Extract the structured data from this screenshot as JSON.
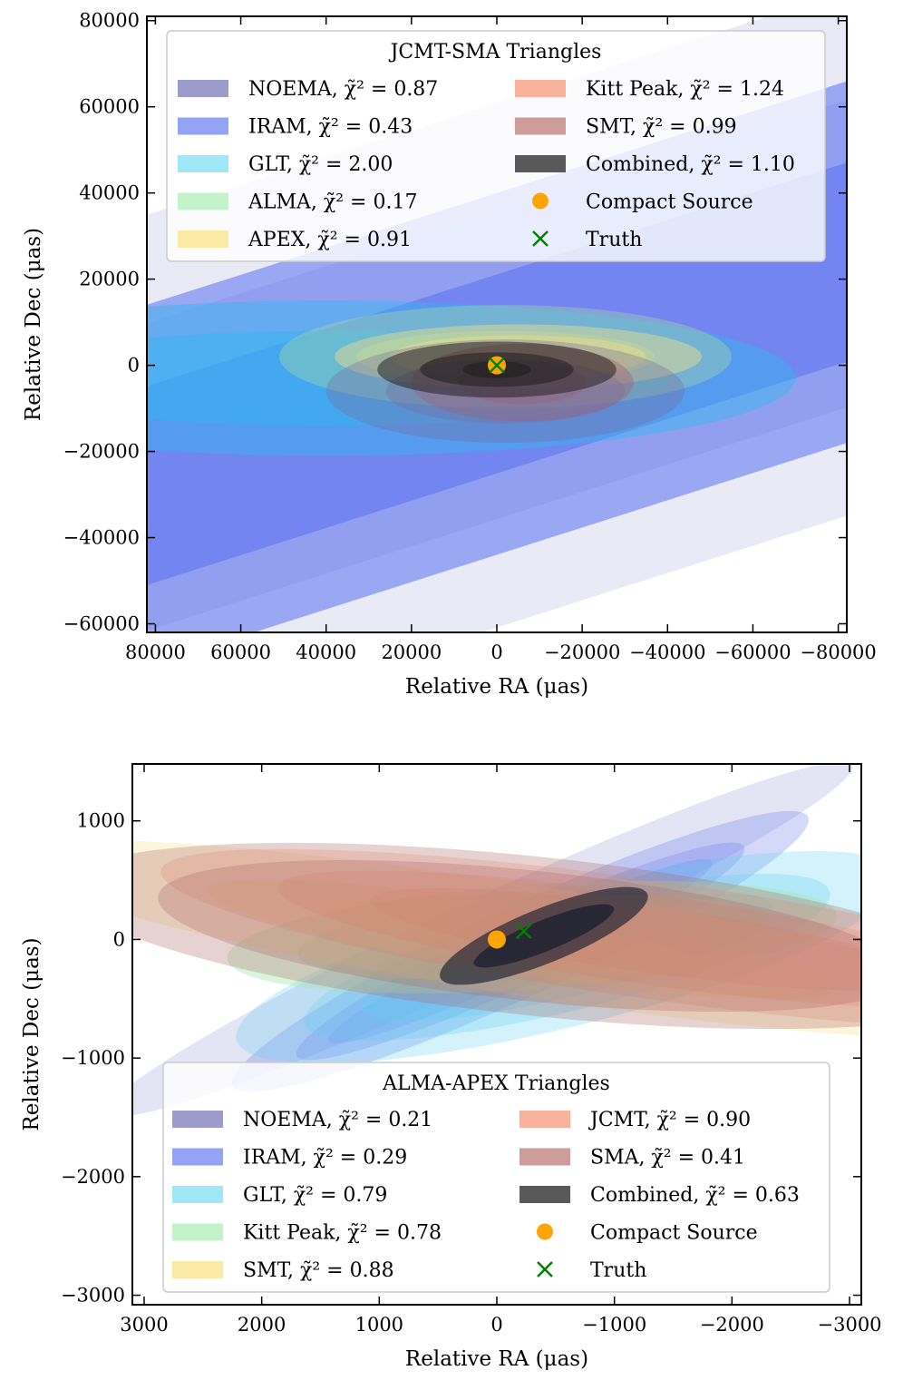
{
  "chart_data": [
    {
      "type": "scatter",
      "title": "JCMT-SMA Triangles",
      "xlabel": "Relative RA (μas)",
      "ylabel": "Relative Dec (μas)",
      "xlim": [
        82000,
        -82000
      ],
      "ylim": [
        -62000,
        81000
      ],
      "xticks": [
        80000,
        60000,
        40000,
        20000,
        0,
        -20000,
        -40000,
        -60000,
        -80000
      ],
      "xtick_labels": [
        "80000",
        "60000",
        "40000",
        "20000",
        "0",
        "−20000",
        "−40000",
        "−60000",
        "−80000"
      ],
      "yticks": [
        -60000,
        -40000,
        -20000,
        0,
        20000,
        40000,
        60000,
        80000
      ],
      "ytick_labels": [
        "−60000",
        "−40000",
        "−20000",
        "0",
        "20000",
        "40000",
        "60000",
        "80000"
      ],
      "legend_position": "top",
      "legend_columns": [
        [
          "NOEMA, χ̃² = 0.87",
          "IRAM, χ̃² = 0.43",
          "GLT, χ̃² = 2.00",
          "ALMA, χ̃² = 0.17",
          "APEX, χ̃² = 0.91"
        ],
        [
          "Kitt Peak, χ̃² = 1.24",
          "SMT, χ̃² = 0.99",
          "Combined, χ̃² = 1.10",
          "Compact Source",
          "Truth"
        ]
      ],
      "legend_kinds": [
        [
          "patch",
          "patch",
          "patch",
          "patch",
          "patch"
        ],
        [
          "patch",
          "patch",
          "patch",
          "dot",
          "cross"
        ]
      ],
      "legend_colors": [
        [
          "#9b9ccc",
          "#95a3f6",
          "#a0e8f8",
          "#c4f3cb",
          "#fbeaa3"
        ],
        [
          "#f9b39c",
          "#cf9c9c",
          "#595959",
          "#ffa500",
          "#008000"
        ]
      ],
      "regions": [
        {
          "name": "NOEMA",
          "shape": "band",
          "color": "#9a9ed6",
          "opacity": 0.22,
          "angle_deg": 17.7,
          "center": [
            0,
            0
          ],
          "levels": [
            [
              -58000,
              58000
            ],
            [
              -34000,
              34000
            ]
          ]
        },
        {
          "name": "IRAM",
          "shape": "band",
          "color": "#5a70f0",
          "opacity": 0.55,
          "angle_deg": 17.7,
          "center": [
            0,
            -2000
          ],
          "levels": [
            [
              -40000,
              40000
            ],
            [
              -22000,
              22000
            ]
          ]
        },
        {
          "name": "GLT",
          "shape": "ellipse",
          "color": "#30b8f0",
          "opacity": 0.45,
          "angle_deg": 0,
          "center": [
            40000,
            -3000
          ],
          "levels": [
            [
              110000,
              18000
            ],
            [
              80000,
              11000
            ]
          ]
        },
        {
          "name": "ALMA",
          "shape": "ellipse",
          "color": "#a3d6a3",
          "opacity": 0.4,
          "angle_deg": 0,
          "center": [
            -2000,
            2000
          ],
          "levels": [
            [
              53000,
              12000
            ],
            [
              35000,
              6000
            ]
          ]
        },
        {
          "name": "APEX",
          "shape": "ellipse",
          "color": "#f0de8a",
          "opacity": 0.45,
          "angle_deg": 0,
          "center": [
            -5000,
            2000
          ],
          "levels": [
            [
              43000,
              7500
            ],
            [
              30000,
              5000
            ]
          ]
        },
        {
          "name": "Kitt Peak",
          "shape": "ellipse",
          "color": "#c06060",
          "opacity": 0.45,
          "angle_deg": 0,
          "center": [
            -6000,
            -4000
          ],
          "levels": [
            [
              26000,
              9000
            ],
            [
              15000,
              5000
            ]
          ]
        },
        {
          "name": "SMT",
          "shape": "ellipse",
          "color": "#7a6b9a",
          "opacity": 0.35,
          "angle_deg": 0,
          "center": [
            -2000,
            -6000
          ],
          "levels": [
            [
              42000,
              12000
            ],
            [
              28000,
              7500
            ]
          ]
        },
        {
          "name": "Combined",
          "shape": "ellipse",
          "color": "#1a1a1a",
          "opacity": 0.5,
          "angle_deg": 0,
          "center": [
            0,
            -1000
          ],
          "levels": [
            [
              28000,
              6500
            ],
            [
              18000,
              4000
            ],
            [
              8000,
              2000
            ]
          ]
        }
      ],
      "points": [
        {
          "name": "Compact Source",
          "marker": "dot",
          "x": 0,
          "y": 0,
          "color": "#ffa500"
        },
        {
          "name": "Truth",
          "marker": "cross",
          "x": 0,
          "y": 0,
          "color": "#008000"
        }
      ]
    },
    {
      "type": "scatter",
      "title": "ALMA-APEX Triangles",
      "xlabel": "Relative RA (μas)",
      "ylabel": "Relative Dec (μas)",
      "xlim": [
        3100,
        -3100
      ],
      "ylim": [
        -3080,
        1480
      ],
      "xticks": [
        3000,
        2000,
        1000,
        0,
        -1000,
        -2000,
        -3000
      ],
      "xtick_labels": [
        "3000",
        "2000",
        "1000",
        "0",
        "−1000",
        "−2000",
        "−3000"
      ],
      "yticks": [
        -3000,
        -2000,
        -1000,
        0,
        1000
      ],
      "ytick_labels": [
        "−3000",
        "−2000",
        "−1000",
        "0",
        "1000"
      ],
      "legend_position": "bottom",
      "legend_columns": [
        [
          "NOEMA, χ̃² = 0.21",
          "IRAM, χ̃² = 0.29",
          "GLT, χ̃² = 0.79",
          "Kitt Peak, χ̃² = 0.78",
          "SMT, χ̃² = 0.88"
        ],
        [
          "JCMT, χ̃² = 0.90",
          "SMA, χ̃² = 0.41",
          "Combined, χ̃² = 0.63",
          "Compact Source",
          "Truth"
        ]
      ],
      "legend_kinds": [
        [
          "patch",
          "patch",
          "patch",
          "patch",
          "patch"
        ],
        [
          "patch",
          "patch",
          "patch",
          "dot",
          "cross"
        ]
      ],
      "legend_colors": [
        [
          "#9b9ccc",
          "#95a3f6",
          "#a0e8f8",
          "#c4f3cb",
          "#fbeaa3"
        ],
        [
          "#f9b39c",
          "#cf9c9c",
          "#595959",
          "#ffa500",
          "#008000"
        ]
      ],
      "regions": [
        {
          "name": "NOEMA",
          "shape": "ellipse",
          "color": "#9a9ed6",
          "opacity": 0.28,
          "angle_deg": 25,
          "center": [
            150,
            0
          ],
          "levels": [
            [
              3500,
              330
            ]
          ]
        },
        {
          "name": "IRAM",
          "shape": "ellipse",
          "color": "#6f80f0",
          "opacity": 0.3,
          "angle_deg": 25,
          "center": [
            -200,
            -100
          ],
          "levels": [
            [
              2700,
              380
            ],
            [
              2100,
              280
            ],
            [
              1800,
              200
            ]
          ]
        },
        {
          "name": "GLT",
          "shape": "ellipse",
          "color": "#60d0f0",
          "opacity": 0.28,
          "angle_deg": 14,
          "center": [
            -600,
            -150
          ],
          "levels": [
            [
              2900,
              580
            ],
            [
              2300,
              450
            ],
            [
              1800,
              330
            ]
          ]
        },
        {
          "name": "Kitt Peak",
          "shape": "ellipse",
          "color": "#a6e8b0",
          "opacity": 0.42,
          "angle_deg": 4,
          "center": [
            -300,
            20
          ],
          "levels": [
            [
              2600,
              440
            ],
            [
              2000,
              330
            ]
          ]
        },
        {
          "name": "SMT",
          "shape": "ellipse",
          "color": "#f4e08c",
          "opacity": 0.3,
          "angle_deg": -9,
          "center": [
            -200,
            0
          ],
          "levels": [
            [
              4500,
              470
            ],
            [
              2700,
              290
            ],
            [
              1700,
              190
            ]
          ]
        },
        {
          "name": "JCMT",
          "shape": "ellipse",
          "color": "#f39a7a",
          "opacity": 0.28,
          "angle_deg": -8,
          "center": [
            -1300,
            0
          ],
          "levels": [
            [
              4200,
              500
            ],
            [
              3200,
              380
            ],
            [
              2400,
              280
            ]
          ]
        },
        {
          "name": "SMA",
          "shape": "ellipse",
          "color": "#b06a6a",
          "opacity": 0.3,
          "angle_deg": -6,
          "center": [
            -300,
            30
          ],
          "levels": [
            [
              4000,
              670
            ],
            [
              3200,
              550
            ]
          ]
        },
        {
          "name": "Combined",
          "shape": "ellipse",
          "color": "#0a1428",
          "opacity": 0.6,
          "angle_deg": 22,
          "center": [
            -400,
            30
          ],
          "levels": [
            [
              950,
              230
            ],
            [
              640,
              130
            ]
          ]
        }
      ],
      "points": [
        {
          "name": "Compact Source",
          "marker": "dot",
          "x": 0,
          "y": 0,
          "color": "#ffa500"
        },
        {
          "name": "Truth",
          "marker": "cross",
          "x": -230,
          "y": 70,
          "color": "#008000"
        }
      ]
    }
  ]
}
